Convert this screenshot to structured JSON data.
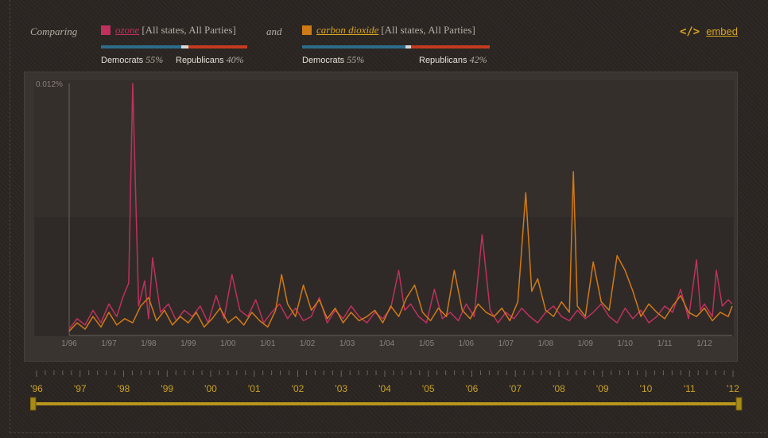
{
  "header": {
    "comparing_label": "Comparing",
    "and_label": "and",
    "term1": {
      "name": "ozone",
      "scope": "[All states, All Parties]",
      "color": "#c0305f",
      "democrats_label": "Democrats",
      "democrats_pct": "55%",
      "democrats_share": 0.55,
      "republicans_label": "Republicans",
      "republicans_pct": "40%",
      "republicans_share": 0.4
    },
    "term2": {
      "name": "carbon dioxide",
      "scope": "[All states, All Parties]",
      "color": "#d07a16",
      "democrats_label": "Democrats",
      "democrats_pct": "55%",
      "democrats_share": 0.55,
      "republicans_label": "Republicans",
      "republicans_pct": "42%",
      "republicans_share": 0.42
    },
    "embed_icon": "code-icon",
    "embed_label": "embed"
  },
  "chart_data": {
    "type": "line",
    "ylim": [
      0,
      0.012
    ],
    "y_max_label": "0.012%",
    "x_tick_labels": [
      "1/96",
      "1/97",
      "1/98",
      "1/99",
      "1/00",
      "1/01",
      "1/02",
      "1/03",
      "1/04",
      "1/05",
      "1/06",
      "1/07",
      "1/08",
      "1/09",
      "1/10",
      "1/11",
      "1/12"
    ],
    "xlim": [
      1996.0,
      2012.7
    ],
    "series": [
      {
        "name": "ozone",
        "color": "#c0305f",
        "x": [
          1996.0,
          1996.2,
          1996.4,
          1996.6,
          1996.8,
          1997.0,
          1997.2,
          1997.35,
          1997.5,
          1997.6,
          1997.75,
          1997.9,
          1998.0,
          1998.1,
          1998.3,
          1998.5,
          1998.7,
          1998.9,
          1999.1,
          1999.3,
          1999.5,
          1999.7,
          1999.9,
          2000.1,
          2000.3,
          2000.5,
          2000.7,
          2000.9,
          2001.1,
          2001.3,
          2001.5,
          2001.7,
          2001.9,
          2002.1,
          2002.3,
          2002.5,
          2002.7,
          2002.9,
          2003.1,
          2003.3,
          2003.5,
          2003.7,
          2003.9,
          2004.1,
          2004.3,
          2004.45,
          2004.6,
          2004.8,
          2005.0,
          2005.2,
          2005.4,
          2005.6,
          2005.8,
          2006.0,
          2006.2,
          2006.4,
          2006.6,
          2006.8,
          2007.0,
          2007.2,
          2007.4,
          2007.6,
          2007.8,
          2008.0,
          2008.2,
          2008.4,
          2008.6,
          2008.8,
          2009.0,
          2009.2,
          2009.4,
          2009.6,
          2009.8,
          2010.0,
          2010.2,
          2010.4,
          2010.6,
          2010.8,
          2011.0,
          2011.2,
          2011.4,
          2011.6,
          2011.8,
          2011.9,
          2012.0,
          2012.2,
          2012.3,
          2012.45,
          2012.6,
          2012.7
        ],
        "y": [
          0.0003,
          0.0008,
          0.0005,
          0.0012,
          0.0006,
          0.0015,
          0.0009,
          0.0018,
          0.0025,
          0.012,
          0.0014,
          0.0026,
          0.0008,
          0.0037,
          0.0011,
          0.0015,
          0.0007,
          0.0012,
          0.0009,
          0.0014,
          0.0006,
          0.0019,
          0.0008,
          0.0029,
          0.0012,
          0.0009,
          0.0017,
          0.0006,
          0.0011,
          0.0015,
          0.0008,
          0.0013,
          0.0007,
          0.0009,
          0.0018,
          0.0006,
          0.0012,
          0.0008,
          0.0014,
          0.0009,
          0.0006,
          0.0011,
          0.0008,
          0.0013,
          0.0031,
          0.0012,
          0.0015,
          0.0009,
          0.0006,
          0.0022,
          0.0008,
          0.0011,
          0.0007,
          0.0015,
          0.0009,
          0.0048,
          0.0012,
          0.0006,
          0.0011,
          0.0008,
          0.0013,
          0.0009,
          0.0006,
          0.0011,
          0.0014,
          0.0009,
          0.0007,
          0.0012,
          0.0008,
          0.0011,
          0.0015,
          0.0009,
          0.0006,
          0.0013,
          0.0008,
          0.0012,
          0.0006,
          0.0009,
          0.0014,
          0.0011,
          0.0022,
          0.0008,
          0.0036,
          0.0012,
          0.0015,
          0.0009,
          0.0031,
          0.0014,
          0.0017,
          0.0015
        ]
      },
      {
        "name": "carbon dioxide",
        "color": "#d07a16",
        "x": [
          1996.0,
          1996.2,
          1996.4,
          1996.6,
          1996.8,
          1997.0,
          1997.2,
          1997.4,
          1997.6,
          1997.8,
          1998.0,
          1998.2,
          1998.4,
          1998.6,
          1998.8,
          1999.0,
          1999.2,
          1999.4,
          1999.6,
          1999.8,
          2000.0,
          2000.2,
          2000.4,
          2000.6,
          2000.8,
          2001.0,
          2001.2,
          2001.35,
          2001.5,
          2001.7,
          2001.9,
          2002.1,
          2002.3,
          2002.5,
          2002.7,
          2002.9,
          2003.1,
          2003.3,
          2003.5,
          2003.7,
          2003.9,
          2004.1,
          2004.3,
          2004.5,
          2004.7,
          2004.9,
          2005.1,
          2005.3,
          2005.5,
          2005.7,
          2005.9,
          2006.1,
          2006.3,
          2006.5,
          2006.7,
          2006.9,
          2007.1,
          2007.3,
          2007.5,
          2007.65,
          2007.8,
          2008.0,
          2008.2,
          2008.4,
          2008.6,
          2008.7,
          2008.8,
          2009.0,
          2009.2,
          2009.4,
          2009.6,
          2009.8,
          2010.0,
          2010.2,
          2010.4,
          2010.6,
          2010.8,
          2011.0,
          2011.2,
          2011.4,
          2011.6,
          2011.8,
          2012.0,
          2012.2,
          2012.4,
          2012.6,
          2012.7
        ],
        "y": [
          0.0002,
          0.0006,
          0.0003,
          0.0009,
          0.0004,
          0.0011,
          0.0005,
          0.0008,
          0.0006,
          0.0014,
          0.0018,
          0.0007,
          0.0012,
          0.0005,
          0.0009,
          0.0006,
          0.0011,
          0.0004,
          0.0008,
          0.0013,
          0.0006,
          0.0009,
          0.0005,
          0.0011,
          0.0007,
          0.0004,
          0.0012,
          0.0029,
          0.0015,
          0.0009,
          0.0024,
          0.0012,
          0.0017,
          0.0008,
          0.0013,
          0.0006,
          0.0011,
          0.0007,
          0.0009,
          0.0012,
          0.0006,
          0.0014,
          0.0009,
          0.0018,
          0.0024,
          0.0011,
          0.0007,
          0.0013,
          0.0009,
          0.0031,
          0.0012,
          0.0008,
          0.0015,
          0.0011,
          0.0009,
          0.0013,
          0.0007,
          0.0016,
          0.0068,
          0.0021,
          0.0027,
          0.0012,
          0.0009,
          0.0016,
          0.0011,
          0.0078,
          0.0014,
          0.0009,
          0.0035,
          0.0016,
          0.0012,
          0.0038,
          0.0031,
          0.0021,
          0.0009,
          0.0015,
          0.0011,
          0.0008,
          0.0014,
          0.0019,
          0.0011,
          0.0009,
          0.0013,
          0.0007,
          0.0011,
          0.0009,
          0.0014
        ]
      }
    ]
  },
  "timeline": {
    "year_labels": [
      "'96",
      "'97",
      "'98",
      "'99",
      "'00",
      "'01",
      "'02",
      "'03",
      "'04",
      "'05",
      "'06",
      "'07",
      "'08",
      "'09",
      "'10",
      "'11",
      "'12"
    ]
  }
}
